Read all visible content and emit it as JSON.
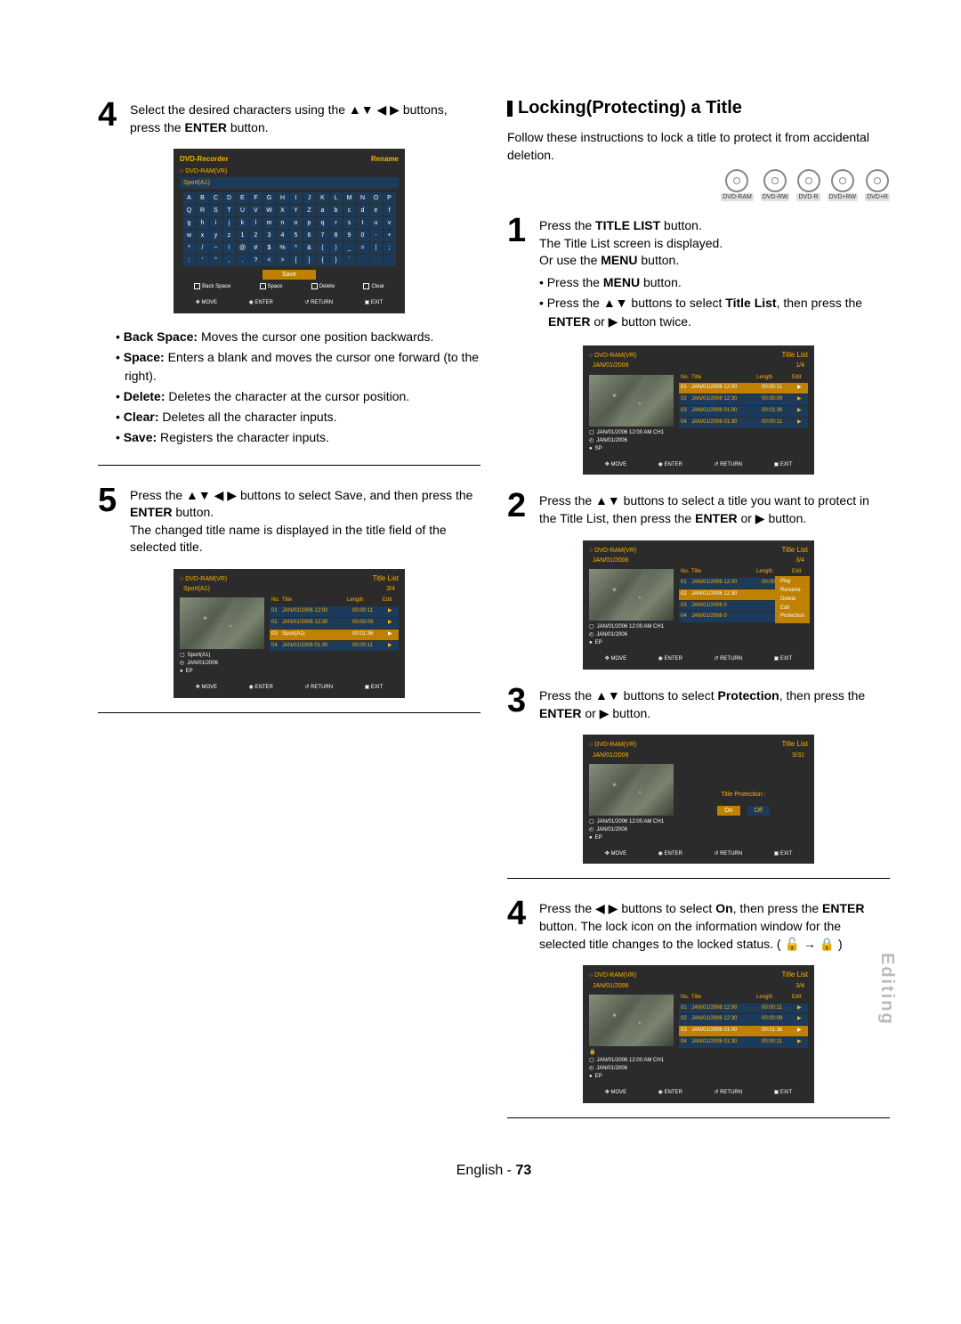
{
  "side_tab": "Editing",
  "footer": {
    "lang": "English",
    "page": "73"
  },
  "left": {
    "step4": {
      "num": "4",
      "text_a": "Select the desired characters using the ▲▼ ◀ ▶ buttons, press the ",
      "text_b": "ENTER",
      "text_c": " button."
    },
    "rename_osd": {
      "top_left": "DVD-Recorder",
      "top_right": "Rename",
      "sub1": "DVD-RAM(VR)",
      "field": "Sport(A1)",
      "chars": [
        "A",
        "B",
        "C",
        "D",
        "E",
        "F",
        "G",
        "H",
        "I",
        "J",
        "K",
        "L",
        "M",
        "N",
        "O",
        "P",
        "Q",
        "R",
        "S",
        "T",
        "U",
        "V",
        "W",
        "X",
        "Y",
        "Z",
        "a",
        "b",
        "c",
        "d",
        "e",
        "f",
        "g",
        "h",
        "i",
        "j",
        "k",
        "l",
        "m",
        "n",
        "o",
        "p",
        "q",
        "r",
        "s",
        "t",
        "u",
        "v",
        "w",
        "x",
        "y",
        "z",
        "1",
        "2",
        "3",
        "4",
        "5",
        "6",
        "7",
        "8",
        "9",
        "0",
        "-",
        "+",
        "*",
        "/",
        "~",
        "!",
        "@",
        "#",
        "$",
        "%",
        "^",
        "&",
        "(",
        ")",
        "_",
        "=",
        "|",
        ";",
        ":",
        "'",
        "\"",
        ",",
        ".",
        "?",
        "<",
        ">",
        "[",
        "]",
        "{",
        "}",
        "`",
        " ",
        " ",
        " "
      ],
      "save": "Save",
      "actions": [
        "Back Space",
        "Space",
        "Delete",
        "Clear"
      ],
      "nav": [
        "MOVE",
        "ENTER",
        "RETURN",
        "EXIT"
      ]
    },
    "bullets": [
      {
        "b": "Back Space:",
        "t": " Moves the cursor one position backwards."
      },
      {
        "b": "Space:",
        "t": " Enters a blank and moves the cursor one forward (to the right)."
      },
      {
        "b": "Delete:",
        "t": " Deletes the character at the cursor position."
      },
      {
        "b": "Clear:",
        "t": " Deletes all the character inputs."
      },
      {
        "b": "Save:",
        "t": " Registers the character inputs."
      }
    ],
    "step5": {
      "num": "5",
      "text": "Press the ▲▼ ◀ ▶ buttons to select Save, and then press the <b> button.<br>The changed title name is displayed in the title field of the selected title.",
      "text_a": "Press the ▲▼ ◀ ▶ buttons to select Save, and then press the ",
      "text_b": "ENTER",
      "text_c": " button.",
      "text_d": "The changed title name is displayed in the title field of the selected title."
    },
    "list_osd": {
      "top_left": "DVD-RAM(VR)",
      "top_right": "Title List",
      "sub_left": "Sport(A1)",
      "sub_right": "3/4",
      "hdr": [
        "No.",
        "Title",
        "Length",
        "Edit"
      ],
      "rows": [
        {
          "n": "01",
          "t": "JAN/01/2006 12:00",
          "l": "00:00:11",
          "sel": false
        },
        {
          "n": "02",
          "t": "JAN/01/2006 12:30",
          "l": "00:00:09",
          "sel": false
        },
        {
          "n": "03",
          "t": "Sport(A1)",
          "l": "00:01:36",
          "sel": true
        },
        {
          "n": "04",
          "t": "JAN/01/2006 01:30",
          "l": "00:00:11",
          "sel": false
        }
      ],
      "meta": [
        "Sport(A1)",
        "JAN/01/2006",
        "EP"
      ],
      "nav": [
        "MOVE",
        "ENTER",
        "RETURN",
        "EXIT"
      ]
    }
  },
  "right": {
    "heading": "Locking(Protecting) a Title",
    "intro": "Follow these instructions to lock a title to protect it from accidental deletion.",
    "discs": [
      "DVD-RAM",
      "DVD-RW",
      "DVD-R",
      "DVD+RW",
      "DVD+R"
    ],
    "step1": {
      "num": "1",
      "l1a": "Press the ",
      "l1b": "TITLE LIST",
      "l1c": " button.",
      "l2": "The Title List screen is displayed.",
      "l3a": "Or use the ",
      "l3b": "MENU",
      "l3c": " button.",
      "b1a": "Press the ",
      "b1b": "MENU",
      "b1c": " button.",
      "b2a": "Press the ▲▼ buttons to select ",
      "b2b": "Title List",
      "b2c": ", then press the ",
      "b2d": "ENTER",
      "b2e": " or ▶ button twice."
    },
    "osd1": {
      "top_left": "DVD-RAM(VR)",
      "top_right": "Title List",
      "sub_left": "JAN/01/2006",
      "sub_right": "1/4",
      "hdr": [
        "No.",
        "Title",
        "Length",
        "Edit"
      ],
      "rows": [
        {
          "n": "01",
          "t": "JAN/01/2006 12:00",
          "l": "00:00:11",
          "sel": true
        },
        {
          "n": "02",
          "t": "JAN/01/2006 12:30",
          "l": "00:00:09",
          "sel": false
        },
        {
          "n": "03",
          "t": "JAN/01/2006 01:00",
          "l": "00:01:36",
          "sel": false
        },
        {
          "n": "04",
          "t": "JAN/01/2006 01:30",
          "l": "00:00:11",
          "sel": false
        }
      ],
      "meta": [
        "JAN/01/2006 12:00 AM CH1",
        "JAN/01/2006",
        "SP"
      ],
      "nav": [
        "MOVE",
        "ENTER",
        "RETURN",
        "EXIT"
      ]
    },
    "step2": {
      "num": "2",
      "a": "Press the ▲▼ buttons to select a title you want to protect in the Title List, then press the ",
      "b": "ENTER",
      "c": " or ▶ button."
    },
    "osd2": {
      "top_left": "DVD-RAM(VR)",
      "top_right": "Title List",
      "sub_left": "JAN/01/2006",
      "sub_right": "3/4",
      "hdr": [
        "No.",
        "Title",
        "Length",
        "Edit"
      ],
      "rows": [
        {
          "n": "01",
          "t": "JAN/01/2006 12:00",
          "l": "00:00:11",
          "sel": false
        },
        {
          "n": "02",
          "t": "JAN/01/2006 12:30",
          "l": "",
          "sel": true
        },
        {
          "n": "03",
          "t": "JAN/01/2006 0",
          "l": "",
          "sel": false
        },
        {
          "n": "04",
          "t": "JAN/01/2006 0",
          "l": "",
          "sel": false
        }
      ],
      "popup": [
        "Play",
        "Rename",
        "Delete",
        "Edit",
        "Protection"
      ],
      "meta": [
        "JAN/01/2006 12:00 AM CH1",
        "JAN/01/2006",
        "EP"
      ],
      "nav": [
        "MOVE",
        "ENTER",
        "RETURN",
        "EXIT"
      ]
    },
    "step3": {
      "num": "3",
      "a": "Press the ▲▼ buttons to select ",
      "b": "Protection",
      "c": ", then press the ",
      "d": "ENTER",
      "e": " or ▶ button."
    },
    "osd3": {
      "top_left": "DVD-RAM(VR)",
      "top_right": "Title List",
      "sub_left": "JAN/01/2006",
      "sub_right": "5/31",
      "plabel": "Title Protection :",
      "on": "On",
      "off": "Off",
      "meta": [
        "JAN/01/2006 12:00 AM CH1",
        "JAN/01/2006",
        "EP"
      ],
      "nav": [
        "MOVE",
        "ENTER",
        "RETURN",
        "EXIT"
      ]
    },
    "step4": {
      "num": "4",
      "a": "Press the ◀ ▶ buttons to select ",
      "b": "On",
      "c": ", then press the ",
      "d": "ENTER",
      "e": " button. The lock icon on the information window for the selected title changes to the locked status. ( ",
      "f": "🔓 → 🔒",
      "g": " )"
    },
    "osd4": {
      "top_left": "DVD-RAM(VR)",
      "top_right": "Title List",
      "sub_left": "JAN/01/2006",
      "sub_right": "3/4",
      "hdr": [
        "No.",
        "Title",
        "Length",
        "Edit"
      ],
      "rows": [
        {
          "n": "01",
          "t": "JAN/01/2006 12:00",
          "l": "00:00:11",
          "sel": false
        },
        {
          "n": "02",
          "t": "JAN/01/2006 12:30",
          "l": "00:00:09",
          "sel": false
        },
        {
          "n": "03",
          "t": "JAN/01/2006 01:00",
          "l": "00:01:36",
          "sel": true
        },
        {
          "n": "04",
          "t": "JAN/01/2006 01:30",
          "l": "00:00:11",
          "sel": false
        }
      ],
      "meta": [
        "JAN/01/2006 12:00 AM CH1",
        "JAN/01/2006",
        "EP"
      ],
      "lock": "🔒",
      "nav": [
        "MOVE",
        "ENTER",
        "RETURN",
        "EXIT"
      ]
    }
  }
}
